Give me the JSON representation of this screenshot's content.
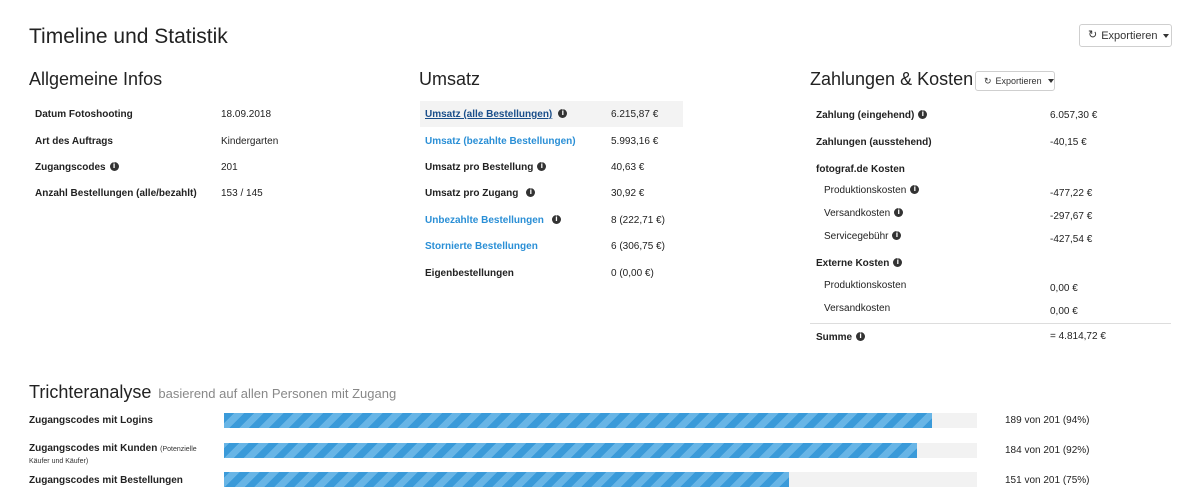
{
  "page_title": "Timeline und Statistik",
  "export_label": "Exportieren",
  "general": {
    "title": "Allgemeine Infos",
    "rows": [
      {
        "label": "Datum Fotoshooting",
        "value": "18.09.2018"
      },
      {
        "label": "Art des Auftrags",
        "value": "Kindergarten"
      },
      {
        "label": "Zugangscodes",
        "value": "201",
        "info": true
      },
      {
        "label": "Anzahl Bestellungen (alle/bezahlt)",
        "value": "153 / 145"
      }
    ]
  },
  "revenue": {
    "title": "Umsatz",
    "rows": [
      {
        "label": "Umsatz (alle Bestellungen)",
        "value": "6.215,87 €"
      },
      {
        "label": "Umsatz (bezahlte Bestellungen)",
        "value": "5.993,16 €"
      },
      {
        "label": "Umsatz pro Bestellung",
        "value": "40,63 €"
      },
      {
        "label": "Umsatz pro Zugang",
        "value": "30,92 €"
      },
      {
        "label": "Unbezahlte Bestellungen",
        "value": "8 (222,71 €)"
      },
      {
        "label": "Stornierte Bestellungen",
        "value": "6 (306,75 €)"
      },
      {
        "label": "Eigenbestellungen",
        "value": "0 (0,00 €)"
      }
    ]
  },
  "payments": {
    "title": "Zahlungen & Kosten",
    "export_label": "Exportieren",
    "rows": [
      {
        "label": "Zahlung (eingehend)",
        "value": "6.057,30 €"
      },
      {
        "label": "Zahlungen (ausstehend)",
        "value": "-40,15 €"
      },
      {
        "label": "fotograf.de Kosten",
        "value": ""
      },
      {
        "label": "Produktionskosten",
        "value": "-477,22 €"
      },
      {
        "label": "Versandkosten",
        "value": "-297,67 €"
      },
      {
        "label": "Servicegebühr",
        "value": "-427,54 €"
      },
      {
        "label": "Externe Kosten",
        "value": ""
      },
      {
        "label": "Produktionskosten",
        "value": "0,00 €"
      },
      {
        "label": "Versandkosten",
        "value": "0,00 €"
      },
      {
        "label": "Summe",
        "value": "= 4.814,72 €"
      }
    ]
  },
  "funnel": {
    "title": "Trichteranalyse",
    "subtitle": "basierend auf allen Personen mit Zugang",
    "rows": [
      {
        "label": "Zugangscodes mit Logins",
        "note": "",
        "value": "189 von 201 (94%)",
        "fraction": 0.94
      },
      {
        "label": "Zugangscodes mit Kunden",
        "note": "(Potenzielle Käufer und Käufer)",
        "value": "184 von 201 (92%)",
        "fraction": 0.92
      },
      {
        "label": "Zugangscodes mit Bestellungen",
        "note": "",
        "value": "151 von 201 (75%)",
        "fraction": 0.75
      }
    ]
  }
}
